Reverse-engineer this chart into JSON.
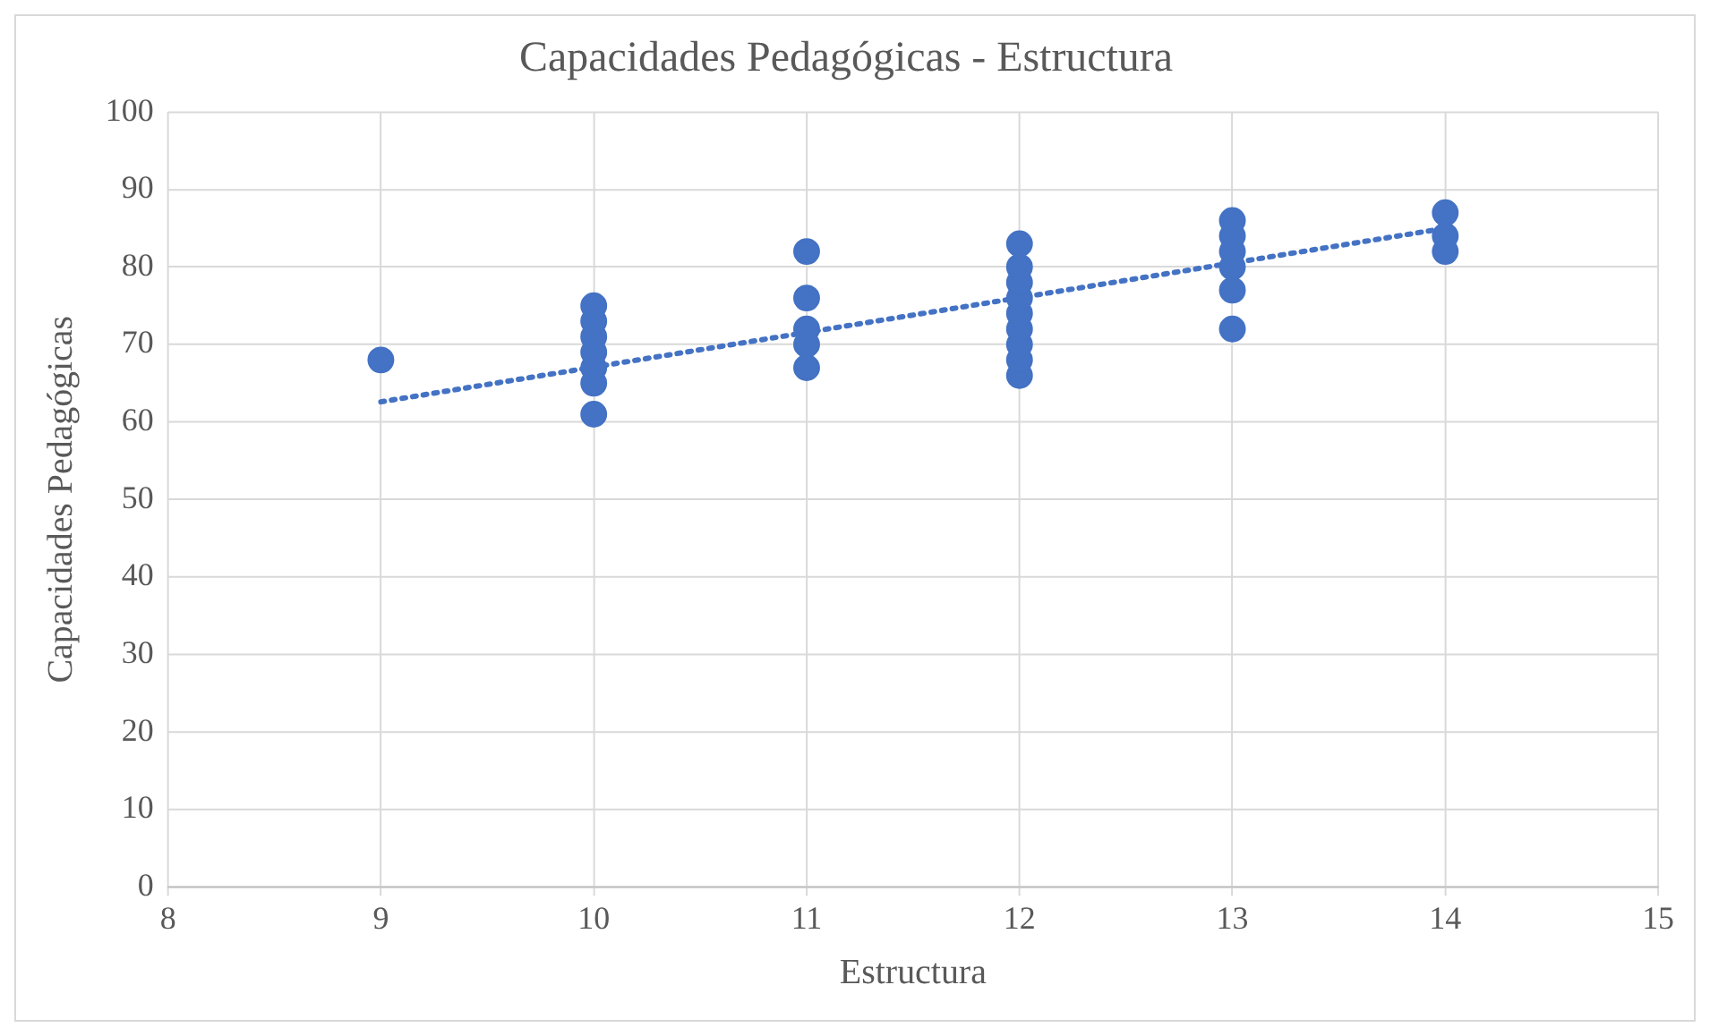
{
  "chart_data": {
    "type": "scatter",
    "title": "Capacidades Pedagógicas - Estructura",
    "xlabel": "Estructura",
    "ylabel": "Capacidades Pedagógicas",
    "xlim": [
      8,
      15
    ],
    "xticks": [
      8,
      9,
      10,
      11,
      12,
      13,
      14,
      15
    ],
    "ylim": [
      0,
      100
    ],
    "yticks": [
      0,
      10,
      20,
      30,
      40,
      50,
      60,
      70,
      80,
      90,
      100
    ],
    "grid": true,
    "legend": false,
    "marker": "circle",
    "series": [
      {
        "color": "#4472c4",
        "x": [
          9,
          10,
          10,
          10,
          10,
          10,
          10,
          10,
          11,
          11,
          11,
          11,
          11,
          12,
          12,
          12,
          12,
          12,
          12,
          12,
          12,
          12,
          13,
          13,
          13,
          13,
          13,
          13,
          14,
          14,
          14
        ],
        "values": [
          68,
          61,
          65,
          67,
          69,
          71,
          73,
          75,
          67,
          70,
          72,
          76,
          82,
          66,
          68,
          70,
          72,
          74,
          76,
          78,
          80,
          83,
          72,
          77,
          80,
          82,
          84,
          86,
          82,
          84,
          87
        ]
      },
      {
        "type": "line",
        "color": "#4472c4",
        "line_style": "dotted",
        "marker": "none",
        "x": [
          9,
          14
        ],
        "values": [
          62.6,
          85
        ]
      }
    ]
  }
}
